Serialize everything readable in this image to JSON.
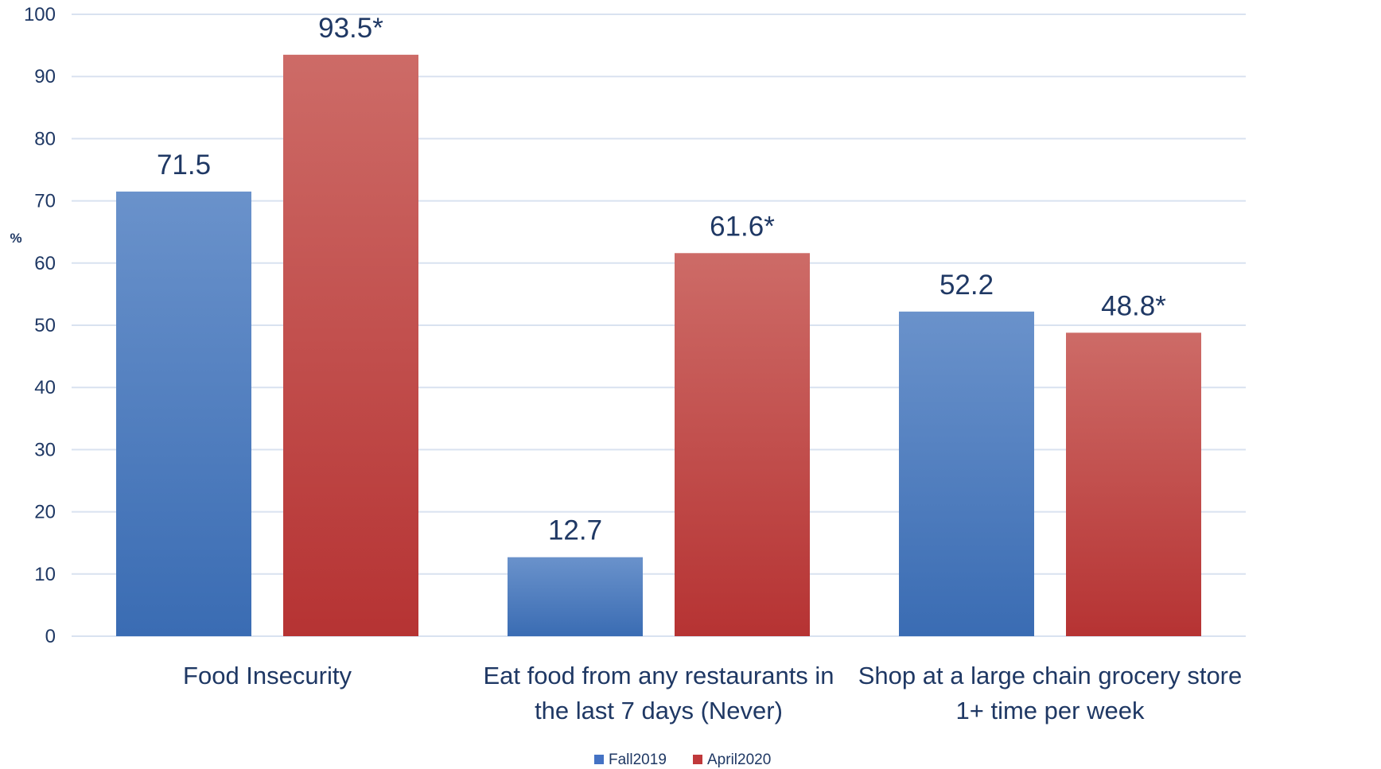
{
  "chart_data": {
    "type": "bar",
    "title": "",
    "xlabel": "",
    "ylabel": "%",
    "ylim": [
      0,
      100
    ],
    "yticks": [
      "0",
      "10",
      "20",
      "30",
      "40",
      "50",
      "60",
      "70",
      "80",
      "90",
      "100"
    ],
    "grid": true,
    "legend_position": "bottom",
    "categories": [
      [
        "Food Insecurity"
      ],
      [
        "Eat food from any restaurants in",
        "the last 7 days (Never)"
      ],
      [
        "Shop at a large chain grocery store",
        "1+ time per week"
      ]
    ],
    "series": [
      {
        "name": "Fall2019",
        "color": "#4472c4",
        "values": [
          71.5,
          12.7,
          52.2
        ],
        "labels": [
          "71.5",
          "12.7",
          "52.2"
        ]
      },
      {
        "name": "April2020",
        "color": "#c0393b",
        "values": [
          93.5,
          61.6,
          48.8
        ],
        "labels": [
          "93.5*",
          "61.6*",
          "48.8*"
        ]
      }
    ]
  }
}
